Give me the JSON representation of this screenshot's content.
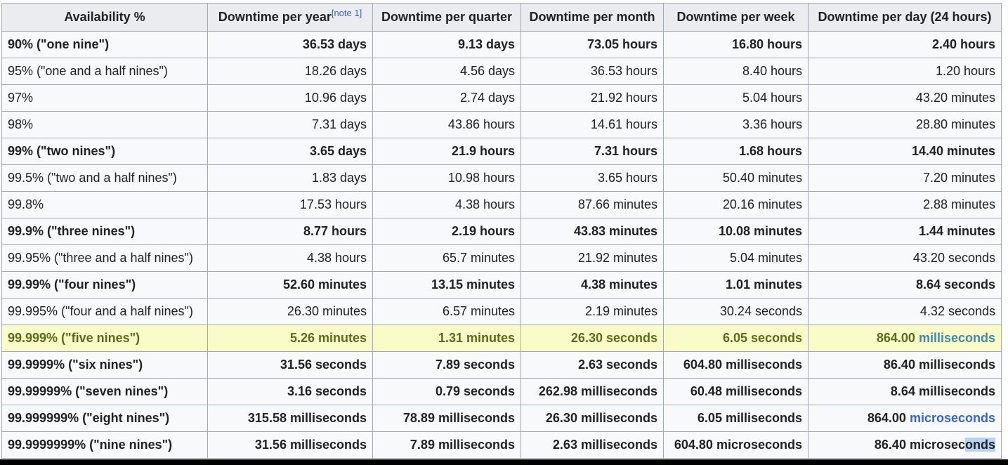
{
  "table": {
    "headers": [
      {
        "label": "Availability %"
      },
      {
        "label": "Downtime per year",
        "note": "[note 1]"
      },
      {
        "label": "Downtime per quarter"
      },
      {
        "label": "Downtime per month"
      },
      {
        "label": "Downtime per week"
      },
      {
        "label": "Downtime per day (24 hours)"
      }
    ],
    "rows": [
      {
        "bold": true,
        "highlight": false,
        "cells": [
          "90% (\"one nine\")",
          "36.53 days",
          "9.13 days",
          "73.05 hours",
          "16.80 hours",
          "2.40 hours"
        ]
      },
      {
        "bold": false,
        "highlight": false,
        "cells": [
          "95% (\"one and a half nines\")",
          "18.26 days",
          "4.56 days",
          "36.53 hours",
          "8.40 hours",
          "1.20 hours"
        ]
      },
      {
        "bold": false,
        "highlight": false,
        "cells": [
          "97%",
          "10.96 days",
          "2.74 days",
          "21.92 hours",
          "5.04 hours",
          "43.20 minutes"
        ]
      },
      {
        "bold": false,
        "highlight": false,
        "cells": [
          "98%",
          "7.31 days",
          "43.86 hours",
          "14.61 hours",
          "3.36 hours",
          "28.80 minutes"
        ]
      },
      {
        "bold": true,
        "highlight": false,
        "cells": [
          "99% (\"two nines\")",
          "3.65 days",
          "21.9 hours",
          "7.31 hours",
          "1.68 hours",
          "14.40 minutes"
        ]
      },
      {
        "bold": false,
        "highlight": false,
        "cells": [
          "99.5% (\"two and a half nines\")",
          "1.83 days",
          "10.98 hours",
          "3.65 hours",
          "50.40 minutes",
          "7.20 minutes"
        ]
      },
      {
        "bold": false,
        "highlight": false,
        "cells": [
          "99.8%",
          "17.53 hours",
          "4.38 hours",
          "87.66 minutes",
          "20.16 minutes",
          "2.88 minutes"
        ]
      },
      {
        "bold": true,
        "highlight": false,
        "cells": [
          "99.9% (\"three nines\")",
          "8.77 hours",
          "2.19 hours",
          "43.83 minutes",
          "10.08 minutes",
          "1.44 minutes"
        ]
      },
      {
        "bold": false,
        "highlight": false,
        "cells": [
          "99.95% (\"three and a half nines\")",
          "4.38 hours",
          "65.7 minutes",
          "21.92 minutes",
          "5.04 minutes",
          "43.20 seconds"
        ]
      },
      {
        "bold": true,
        "highlight": false,
        "cells": [
          "99.99% (\"four nines\")",
          "52.60 minutes",
          "13.15 minutes",
          "4.38 minutes",
          "1.01 minutes",
          "8.64 seconds"
        ]
      },
      {
        "bold": false,
        "highlight": false,
        "cells": [
          "99.995% (\"four and a half nines\")",
          "26.30 minutes",
          "6.57 minutes",
          "2.19 minutes",
          "30.24 seconds",
          "4.32 seconds"
        ]
      },
      {
        "bold": true,
        "highlight": true,
        "cells": [
          "99.999% (\"five nines\")",
          "5.26 minutes",
          "1.31 minutes",
          "26.30 seconds",
          "6.05 seconds"
        ],
        "last": {
          "value": "864.00 ",
          "unit_link": "milliseconds"
        }
      },
      {
        "bold": true,
        "highlight": false,
        "cells": [
          "99.9999% (\"six nines\")",
          "31.56 seconds",
          "7.89 seconds",
          "2.63 seconds",
          "604.80 milliseconds",
          "86.40 milliseconds"
        ]
      },
      {
        "bold": true,
        "highlight": false,
        "cells": [
          "99.99999% (\"seven nines\")",
          "3.16 seconds",
          "0.79 seconds",
          "262.98 milliseconds",
          "60.48 milliseconds",
          "8.64 milliseconds"
        ]
      },
      {
        "bold": true,
        "highlight": false,
        "cells": [
          "99.999999% (\"eight nines\")",
          "315.58 milliseconds",
          "78.89 milliseconds",
          "26.30 milliseconds",
          "6.05 milliseconds"
        ],
        "last": {
          "value": "864.00 ",
          "unit_link": "microseconds"
        }
      },
      {
        "bold": true,
        "highlight": false,
        "cells": [
          "99.9999999% (\"nine nines\")",
          "31.56 milliseconds",
          "7.89 milliseconds",
          "2.63 milliseconds",
          "604.80 microseconds"
        ],
        "last": {
          "value_before_selection": "86.40 microsec",
          "selected_text": "onds"
        }
      }
    ]
  },
  "colors": {
    "header_bg": "#eaecf0",
    "cell_bg": "#f8f9fa",
    "border": "#a2a9b1",
    "highlight_row_bg": "#f9fbc8",
    "link": "#3366cc",
    "selection": "#b7d3ef"
  }
}
